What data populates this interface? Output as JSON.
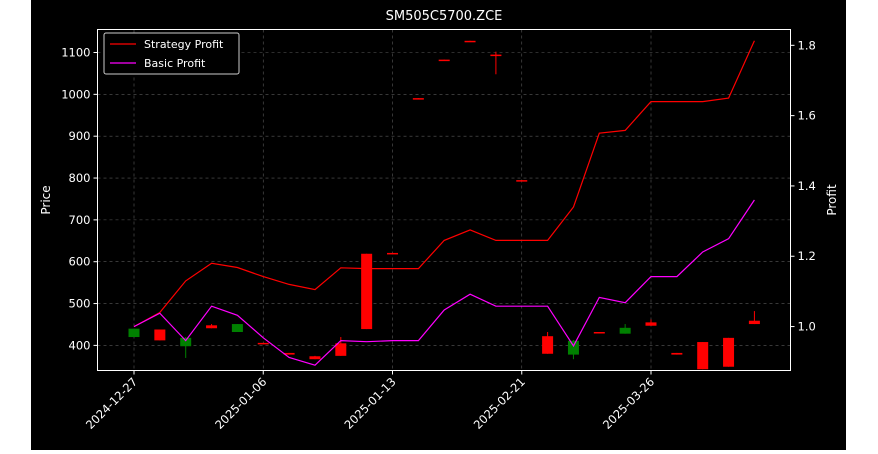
{
  "chart_data": {
    "type": "candlestick-with-lines",
    "title": "SM505C5700.ZCE",
    "xlabel": "",
    "ylabel_left": "Price",
    "ylabel_right": "Profit",
    "ylim_left": [
      340,
      1155
    ],
    "ylim_right": [
      0.875,
      1.845
    ],
    "yticks_left": [
      400,
      500,
      600,
      700,
      800,
      900,
      1000,
      1100
    ],
    "yticks_right": [
      1.0,
      1.2,
      1.4,
      1.6,
      1.8
    ],
    "xtick_labels": [
      "2024-12-27",
      "2025-01-06",
      "2025-01-13",
      "2025-02-21",
      "2025-03-26"
    ],
    "xtick_index": [
      0,
      5,
      10,
      15,
      20
    ],
    "grid": true,
    "legend_position": "upper-left",
    "background_color": "#000000",
    "colors": {
      "up": "#008000",
      "down": "#ff0000",
      "strategy": "#ff0000",
      "basic": "#ff00ff",
      "text": "#ffffff",
      "grid": "#808080"
    },
    "candles": [
      {
        "i": 0,
        "open": 420,
        "close": 440,
        "high": 440,
        "low": 420
      },
      {
        "i": 1,
        "open": 438,
        "close": 412,
        "high": 438,
        "low": 412
      },
      {
        "i": 2,
        "open": 398,
        "close": 418,
        "high": 420,
        "low": 370
      },
      {
        "i": 3,
        "open": 448,
        "close": 441,
        "high": 451,
        "low": 441
      },
      {
        "i": 4,
        "open": 432,
        "close": 451,
        "high": 451,
        "low": 432
      },
      {
        "i": 5,
        "open": 406,
        "close": 404,
        "high": 406,
        "low": 404
      },
      {
        "i": 6,
        "open": 382,
        "close": 378,
        "high": 382,
        "low": 378
      },
      {
        "i": 7,
        "open": 374,
        "close": 367,
        "high": 375,
        "low": 367
      },
      {
        "i": 8,
        "open": 405,
        "close": 375,
        "high": 420,
        "low": 375
      },
      {
        "i": 9,
        "open": 619,
        "close": 439,
        "high": 619,
        "low": 439
      },
      {
        "i": 10,
        "open": 621,
        "close": 619,
        "high": 621,
        "low": 619
      },
      {
        "i": 11,
        "open": 991,
        "close": 989,
        "high": 991,
        "low": 989
      },
      {
        "i": 12,
        "open": 1083,
        "close": 1080,
        "high": 1083,
        "low": 1080
      },
      {
        "i": 13,
        "open": 1128,
        "close": 1126,
        "high": 1128,
        "low": 1126
      },
      {
        "i": 14,
        "open": 1095,
        "close": 1093,
        "high": 1102,
        "low": 1048
      },
      {
        "i": 15,
        "open": 795,
        "close": 793,
        "high": 795,
        "low": 793
      },
      {
        "i": 16,
        "open": 422,
        "close": 380,
        "high": 432,
        "low": 380
      },
      {
        "i": 17,
        "open": 378,
        "close": 411,
        "high": 413,
        "low": 367
      },
      {
        "i": 18,
        "open": 432,
        "close": 429,
        "high": 432,
        "low": 429
      },
      {
        "i": 19,
        "open": 428,
        "close": 442,
        "high": 451,
        "low": 428
      },
      {
        "i": 20,
        "open": 455,
        "close": 447,
        "high": 462,
        "low": 447
      },
      {
        "i": 21,
        "open": 382,
        "close": 378,
        "high": 382,
        "low": 378
      },
      {
        "i": 22,
        "open": 408,
        "close": 343,
        "high": 408,
        "low": 343
      },
      {
        "i": 23,
        "open": 418,
        "close": 349,
        "high": 418,
        "low": 349
      },
      {
        "i": 24,
        "open": 459,
        "close": 451,
        "high": 482,
        "low": 451
      }
    ],
    "series": [
      {
        "name": "Strategy Profit",
        "x": [
          0,
          1,
          2,
          3,
          4,
          5,
          6,
          7,
          8,
          9,
          10,
          11,
          12,
          13,
          14,
          15,
          16,
          17,
          18,
          19,
          20,
          21,
          22,
          23,
          24
        ],
        "values": [
          1.0,
          1.04,
          1.13,
          1.18,
          1.168,
          1.142,
          1.12,
          1.105,
          1.167,
          1.165,
          1.165,
          1.165,
          1.245,
          1.275,
          1.245,
          1.245,
          1.245,
          1.34,
          1.55,
          1.558,
          1.64,
          1.64,
          1.64,
          1.65,
          1.813
        ]
      },
      {
        "name": "Basic Profit",
        "x": [
          0,
          1,
          2,
          3,
          4,
          5,
          6,
          7,
          8,
          9,
          10,
          11,
          12,
          13,
          14,
          15,
          16,
          17,
          18,
          19,
          20,
          21,
          22,
          23,
          24
        ],
        "values": [
          1.0,
          1.038,
          0.96,
          1.058,
          1.032,
          0.968,
          0.912,
          0.89,
          0.96,
          0.957,
          0.96,
          0.96,
          1.047,
          1.092,
          1.058,
          1.058,
          1.058,
          0.945,
          1.083,
          1.068,
          1.142,
          1.142,
          1.212,
          1.25,
          1.36
        ]
      }
    ]
  }
}
